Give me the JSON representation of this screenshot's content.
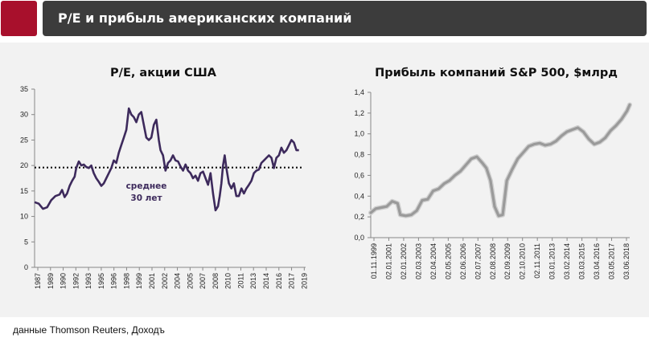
{
  "header": {
    "title": "P/E и прибыль американских компаний"
  },
  "source_note": "данные Thomson Reuters, Доходъ",
  "colors": {
    "accent": "#a8102c",
    "header_bg": "#3c3c3c",
    "panel_bg": "#f2f2f2",
    "pe_line": "#3d2a5c",
    "profit_line": "#9a9a9a"
  },
  "chart_data": [
    {
      "type": "line",
      "title": "P/E, акции США",
      "ylim": [
        0,
        35
      ],
      "y_ticks": [
        0,
        5,
        10,
        15,
        20,
        25,
        30,
        35
      ],
      "xlim": [
        1987,
        2019.5
      ],
      "x_ticks": [
        "1987",
        "1989",
        "1990",
        "1992",
        "1993",
        "1995",
        "1996",
        "1998",
        "1999",
        "2001",
        "2002",
        "2004",
        "2005",
        "2007",
        "2008",
        "2010",
        "2011",
        "2013",
        "2014",
        "2016",
        "2017",
        "2019"
      ],
      "grid": false,
      "annotation": {
        "line1": "среднее",
        "line2": "30 лет",
        "value": 19.6
      },
      "series": [
        {
          "x": [
            1987.0,
            1987.5,
            1988.0,
            1988.5,
            1989.0,
            1989.5,
            1990.0,
            1990.3,
            1990.6,
            1990.9,
            1991.2,
            1991.5,
            1991.8,
            1992.0,
            1992.3,
            1992.6,
            1992.9,
            1993.2,
            1993.5,
            1993.8,
            1994.1,
            1994.4,
            1994.7,
            1995.0,
            1995.3,
            1995.6,
            1995.9,
            1996.2,
            1996.5,
            1996.8,
            1997.1,
            1997.4,
            1997.7,
            1998.0,
            1998.3,
            1998.6,
            1998.9,
            1999.2,
            1999.5,
            1999.8,
            2000.1,
            2000.4,
            2000.7,
            2001.0,
            2001.3,
            2001.6,
            2001.9,
            2002.1,
            2002.4,
            2002.7,
            2003.0,
            2003.3,
            2003.6,
            2003.9,
            2004.2,
            2004.5,
            2004.8,
            2005.1,
            2005.4,
            2005.7,
            2006.0,
            2006.3,
            2006.6,
            2006.9,
            2007.2,
            2007.5,
            2007.8,
            2008.1,
            2008.4,
            2008.7,
            2009.0,
            2009.2,
            2009.4,
            2009.6,
            2009.8,
            2010.0,
            2010.3,
            2010.6,
            2010.9,
            2011.2,
            2011.5,
            2011.8,
            2012.1,
            2012.4,
            2012.7,
            2013.0,
            2013.3,
            2013.6,
            2013.9,
            2014.2,
            2014.5,
            2014.8,
            2015.1,
            2015.4,
            2015.7,
            2016.0,
            2016.3,
            2016.6,
            2016.9,
            2017.2,
            2017.5,
            2017.8,
            2018.1,
            2018.4,
            2018.7
          ],
          "values": [
            12.8,
            12.5,
            11.5,
            11.8,
            13.2,
            14.0,
            14.3,
            15.2,
            13.8,
            14.5,
            16.0,
            17.0,
            17.8,
            19.5,
            20.8,
            20.0,
            20.2,
            19.7,
            19.5,
            20.0,
            18.5,
            17.5,
            16.8,
            16.0,
            16.5,
            17.5,
            18.5,
            19.5,
            21.0,
            20.5,
            22.5,
            24.0,
            25.5,
            27.0,
            31.2,
            30.0,
            29.5,
            28.5,
            30.0,
            30.5,
            28.0,
            25.5,
            25.0,
            25.5,
            28.0,
            29.0,
            25.0,
            23.0,
            22.0,
            19.0,
            20.5,
            21.0,
            22.0,
            21.0,
            20.8,
            19.8,
            19.0,
            20.2,
            19.0,
            18.5,
            17.5,
            18.0,
            17.0,
            18.5,
            18.8,
            17.5,
            16.2,
            18.5,
            14.5,
            11.2,
            12.0,
            14.0,
            16.5,
            20.0,
            22.0,
            19.5,
            16.5,
            15.5,
            16.5,
            14.0,
            14.0,
            15.5,
            14.5,
            15.5,
            16.2,
            17.0,
            18.5,
            19.0,
            19.2,
            20.5,
            21.0,
            21.5,
            22.0,
            21.5,
            19.5,
            21.5,
            22.0,
            23.5,
            22.5,
            23.0,
            24.0,
            25.0,
            24.5,
            23.0,
            23.0
          ]
        }
      ]
    },
    {
      "type": "line",
      "title": "Прибыль компаний S&P 500, $млрд",
      "ylim": [
        0,
        1.4
      ],
      "y_ticks": [
        "0,0",
        "0,2",
        "0,4",
        "0,6",
        "0,8",
        "1,0",
        "1,2",
        "1,4"
      ],
      "x_ticks": [
        "01.11.1999",
        "02.01.2001",
        "02.01.2002",
        "02.03.2003",
        "02.04.2004",
        "02.05.2005",
        "02.06.2006",
        "02.07.2007",
        "02.08.2008",
        "02.09.2009",
        "02.10.2010",
        "02.11.2011",
        "03.01.2013",
        "03.02.2014",
        "03.03.2015",
        "03.04.2016",
        "03.05.2017",
        "03.06.2018"
      ],
      "xlim": [
        1999.83,
        2018.8
      ],
      "grid": false,
      "series": [
        {
          "x": [
            1999.83,
            2000.2,
            2000.6,
            2001.0,
            2001.4,
            2001.8,
            2002.0,
            2002.4,
            2002.8,
            2003.2,
            2003.6,
            2004.0,
            2004.4,
            2004.8,
            2005.2,
            2005.6,
            2006.0,
            2006.4,
            2006.8,
            2007.2,
            2007.6,
            2008.0,
            2008.3,
            2008.6,
            2008.9,
            2009.2,
            2009.5,
            2009.8,
            2010.2,
            2010.6,
            2011.0,
            2011.4,
            2011.8,
            2012.2,
            2012.6,
            2013.0,
            2013.4,
            2013.8,
            2014.2,
            2014.6,
            2015.0,
            2015.4,
            2015.8,
            2016.2,
            2016.6,
            2017.0,
            2017.4,
            2017.8,
            2018.2,
            2018.6,
            2018.8
          ],
          "values": [
            0.24,
            0.28,
            0.29,
            0.3,
            0.35,
            0.33,
            0.22,
            0.21,
            0.22,
            0.26,
            0.36,
            0.37,
            0.45,
            0.47,
            0.52,
            0.55,
            0.6,
            0.64,
            0.7,
            0.76,
            0.78,
            0.72,
            0.67,
            0.55,
            0.3,
            0.21,
            0.22,
            0.55,
            0.66,
            0.76,
            0.82,
            0.88,
            0.9,
            0.91,
            0.89,
            0.9,
            0.93,
            0.98,
            1.02,
            1.04,
            1.06,
            1.02,
            0.95,
            0.9,
            0.92,
            0.96,
            1.03,
            1.08,
            1.14,
            1.22,
            1.28
          ]
        }
      ]
    }
  ]
}
